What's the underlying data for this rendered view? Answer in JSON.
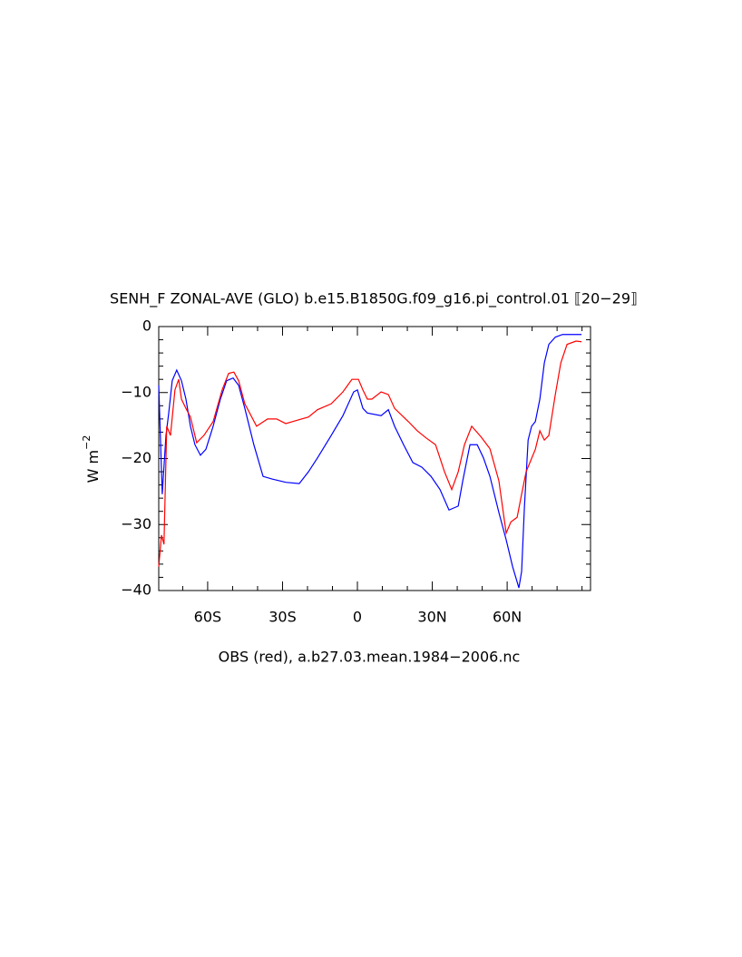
{
  "chart_data": {
    "type": "line",
    "title": "SENH_F ZONAL-AVE (GLO) b.e15.B1850G.f09_g16.pi_control.01 ⟦20−29⟧",
    "ylabel": "W m",
    "ylabel_exponent": "−2",
    "caption": "OBS (red), a.b27.03.mean.1984−2006.nc",
    "xlim": [
      -79.6,
      93.4
    ],
    "ylim": [
      -40,
      0
    ],
    "xticks": [
      {
        "value": -60,
        "label": "60S"
      },
      {
        "value": -30,
        "label": "30S"
      },
      0,
      {
        "value": 30,
        "label": "30N"
      },
      {
        "value": 60,
        "label": "60N"
      }
    ],
    "xminorticks": [
      -70,
      -50,
      -40,
      -20,
      -10,
      10,
      20,
      40,
      50,
      70,
      80,
      90
    ],
    "yticks": [
      0,
      {
        "value": -10,
        "label": "−10"
      },
      {
        "value": -20,
        "label": "−20"
      },
      {
        "value": -30,
        "label": "−30"
      },
      {
        "value": -40,
        "label": "−40"
      }
    ],
    "yminorticks": [
      -2,
      -4,
      -6,
      -8,
      -12,
      -14,
      -16,
      -18,
      -22,
      -24,
      -26,
      -28,
      -32,
      -34,
      -36,
      -38
    ],
    "series": [
      {
        "color": "#0000ff",
        "x": [
          -79.6,
          -78.2,
          -76.7,
          -75.6,
          -74.2,
          -72.4,
          -70.5,
          -68.7,
          -66.9,
          -65.1,
          -62.9,
          -60.7,
          -57.8,
          -54.9,
          -52.4,
          -49.8,
          -47.6,
          -45.1,
          -41.5,
          -37.8,
          -34.2,
          -28.7,
          -23.3,
          -19.6,
          -16.0,
          -10.5,
          -5.8,
          -1.5,
          0,
          2.2,
          4.0,
          9.5,
          12.4,
          14.9,
          18.5,
          22.2,
          25.8,
          29.5,
          33.1,
          36.7,
          40.4,
          42.2,
          45.1,
          48.0,
          50.5,
          53.1,
          56.7,
          59.6,
          62.2,
          64.7,
          65.8,
          66.9,
          68.4,
          69.8,
          71.3,
          73.1,
          74.9,
          76.7,
          79.3,
          82.2,
          85.8,
          89.8
        ],
        "values": [
          -8.9,
          -25.4,
          -16.5,
          -13.1,
          -8.2,
          -6.6,
          -8.2,
          -11.0,
          -15.1,
          -17.9,
          -19.5,
          -18.6,
          -15.1,
          -11.0,
          -8.2,
          -7.8,
          -8.9,
          -12.4,
          -17.9,
          -22.7,
          -23.1,
          -23.6,
          -23.8,
          -22.0,
          -19.9,
          -16.5,
          -13.5,
          -9.9,
          -9.6,
          -12.4,
          -13.1,
          -13.5,
          -12.6,
          -15.1,
          -17.9,
          -20.6,
          -21.3,
          -22.7,
          -24.7,
          -27.8,
          -27.2,
          -23.4,
          -17.9,
          -17.9,
          -19.9,
          -22.7,
          -28.2,
          -32.3,
          -36.4,
          -39.6,
          -37.1,
          -27.5,
          -17.2,
          -15.1,
          -14.4,
          -11.0,
          -5.5,
          -2.7,
          -1.6,
          -1.2,
          -1.2,
          -1.2
        ]
      },
      {
        "color": "#ff0000",
        "x": [
          -79.6,
          -78.5,
          -77.5,
          -76.4,
          -74.9,
          -73.1,
          -71.6,
          -70.5,
          -68.7,
          -66.9,
          -64.4,
          -61.5,
          -57.8,
          -54.2,
          -51.6,
          -49.5,
          -47.6,
          -45.1,
          -40.4,
          -36.0,
          -32.4,
          -28.7,
          -25.1,
          -19.6,
          -16.0,
          -10.5,
          -5.8,
          -2.2,
          0.4,
          2.2,
          4.0,
          5.8,
          9.5,
          12.4,
          14.9,
          20.4,
          24.0,
          27.6,
          31.3,
          34.9,
          37.8,
          40.4,
          42.9,
          45.8,
          49.5,
          53.1,
          56.7,
          59.6,
          61.5,
          64.0,
          65.8,
          67.6,
          71.3,
          73.1,
          74.9,
          76.7,
          79.3,
          81.5,
          84.0,
          87.6,
          89.8
        ],
        "values": [
          -36.4,
          -31.6,
          -33.0,
          -15.1,
          -16.5,
          -9.6,
          -8.0,
          -11.0,
          -12.4,
          -13.7,
          -17.6,
          -16.5,
          -14.4,
          -9.6,
          -7.1,
          -6.9,
          -8.2,
          -11.7,
          -15.1,
          -14.0,
          -14.0,
          -14.7,
          -14.3,
          -13.7,
          -12.6,
          -11.7,
          -9.9,
          -8.0,
          -8.0,
          -9.6,
          -11.0,
          -11.0,
          -9.9,
          -10.3,
          -12.4,
          -14.4,
          -15.8,
          -16.9,
          -17.9,
          -22.0,
          -24.7,
          -22.0,
          -17.9,
          -15.1,
          -16.7,
          -18.5,
          -23.4,
          -31.3,
          -29.6,
          -28.9,
          -25.4,
          -22.0,
          -18.6,
          -15.8,
          -17.2,
          -16.5,
          -10.3,
          -5.5,
          -2.7,
          -2.2,
          -2.3
        ]
      }
    ]
  }
}
